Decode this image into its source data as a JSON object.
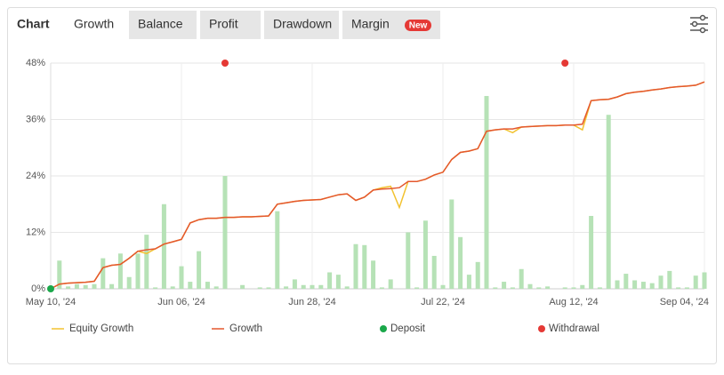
{
  "tabs": [
    "Chart",
    "Growth",
    "Balance",
    "Profit",
    "Drawdown",
    "Margin"
  ],
  "badge": "New",
  "active_tab": 1,
  "chart_data": {
    "type": "line",
    "categories": [
      "May 10, '24",
      null,
      null,
      null,
      null,
      null,
      null,
      null,
      null,
      null,
      null,
      null,
      null,
      null,
      null,
      "Jun 06, '24",
      null,
      null,
      null,
      null,
      null,
      null,
      null,
      null,
      null,
      null,
      null,
      null,
      null,
      null,
      "Jun 28, '24",
      null,
      null,
      null,
      null,
      null,
      null,
      null,
      null,
      null,
      null,
      null,
      null,
      null,
      null,
      "Jul 22, '24",
      null,
      null,
      null,
      null,
      null,
      null,
      null,
      null,
      null,
      null,
      null,
      null,
      null,
      null,
      "Aug 12, '24",
      null,
      null,
      null,
      null,
      null,
      null,
      null,
      null,
      null,
      null,
      null,
      null,
      null,
      null,
      "Sep 04, '24"
    ],
    "ylim": [
      0,
      48
    ],
    "yticks": [
      {
        "value": 0,
        "label": "0%"
      },
      {
        "value": 12,
        "label": "12%"
      },
      {
        "value": 24,
        "label": "24%"
      },
      {
        "value": 36,
        "label": "36%"
      },
      {
        "value": 48,
        "label": "48%"
      }
    ],
    "grid": true,
    "bars": {
      "color": "#b6e2b6",
      "values": [
        0,
        6,
        0.5,
        1,
        0.8,
        1,
        6.5,
        1,
        7.5,
        2.5,
        7.5,
        11.5,
        0.3,
        18,
        0.5,
        4.8,
        1.5,
        8,
        1.5,
        0.5,
        24,
        0,
        0.8,
        0,
        0.3,
        0.3,
        16.5,
        0.5,
        2,
        0.8,
        0.8,
        0.8,
        3.5,
        3,
        0.5,
        9.5,
        9.3,
        6,
        0.3,
        2,
        0,
        12,
        0.3,
        14.5,
        7,
        0.8,
        19,
        11,
        3,
        5.7,
        41,
        0.3,
        1.5,
        0.3,
        4.2,
        1,
        0.3,
        0.5,
        0,
        0.3,
        0.3,
        0.8,
        15.5,
        0.3,
        37,
        1.8,
        3.2,
        1.8,
        1.5,
        1.2,
        2.8,
        3.8,
        0.3,
        0.3,
        2.8,
        3.5
      ]
    },
    "series": [
      {
        "name": "Equity Growth",
        "type": "line",
        "color": "#f2c230",
        "values": [
          0,
          1,
          1.2,
          1.3,
          1.4,
          1.6,
          4.5,
          5,
          5.2,
          6.5,
          8,
          7.5,
          8.5,
          9.5,
          10,
          10.5,
          14,
          14.7,
          15,
          15,
          15.2,
          15.2,
          15.3,
          15.3,
          15.4,
          15.5,
          18,
          18.3,
          18.6,
          18.8,
          18.9,
          19,
          19.5,
          20,
          20.2,
          18.8,
          19.5,
          21,
          21.5,
          21.8,
          17.3,
          22.8,
          22.8,
          23.3,
          24.2,
          24.8,
          27.5,
          29,
          29.3,
          29.8,
          33.5,
          33.8,
          34,
          33.2,
          34.4,
          34.5,
          34.6,
          34.7,
          34.7,
          34.8,
          34.8,
          33.8,
          40,
          40.2,
          40.3,
          40.8,
          41.5,
          41.8,
          42,
          42.3,
          42.5,
          42.8,
          43,
          43.1,
          43.3,
          44
        ]
      },
      {
        "name": "Growth",
        "type": "line",
        "color": "#e4572e",
        "values": [
          0,
          1,
          1.2,
          1.3,
          1.4,
          1.6,
          4.5,
          5,
          5.2,
          6.5,
          8,
          8.3,
          8.5,
          9.5,
          10,
          10.5,
          14,
          14.7,
          15,
          15,
          15.2,
          15.2,
          15.3,
          15.3,
          15.4,
          15.5,
          18,
          18.3,
          18.6,
          18.8,
          18.9,
          19,
          19.5,
          20,
          20.2,
          18.8,
          19.5,
          21,
          21.2,
          21.3,
          21.5,
          22.8,
          22.8,
          23.3,
          24.2,
          24.8,
          27.5,
          29,
          29.3,
          29.8,
          33.5,
          33.8,
          34,
          34,
          34.4,
          34.5,
          34.6,
          34.7,
          34.7,
          34.8,
          34.8,
          35,
          40,
          40.2,
          40.3,
          40.8,
          41.5,
          41.8,
          42,
          42.3,
          42.5,
          42.8,
          43,
          43.1,
          43.3,
          44
        ]
      },
      {
        "name": "Deposit",
        "type": "point",
        "color": "#1aa84a",
        "values": [
          0,
          null,
          null,
          null,
          null,
          null,
          null,
          null,
          null,
          null,
          null,
          null,
          null,
          null,
          null,
          null,
          null,
          null,
          null,
          null,
          null,
          null,
          null,
          null,
          null,
          null,
          null,
          null,
          null,
          null,
          null,
          null,
          null,
          null,
          null,
          null,
          null,
          null,
          null,
          null,
          null,
          null,
          null,
          null,
          null,
          null,
          null,
          null,
          null,
          null,
          null,
          null,
          null,
          null,
          null,
          null,
          null,
          null,
          null,
          null,
          null,
          null,
          null,
          null,
          null,
          null,
          null,
          null,
          null,
          null,
          null,
          null,
          null,
          null,
          null,
          null
        ]
      },
      {
        "name": "Withdrawal",
        "type": "point",
        "color": "#e53935",
        "values": [
          null,
          null,
          null,
          null,
          null,
          null,
          null,
          null,
          null,
          null,
          null,
          null,
          null,
          null,
          null,
          null,
          null,
          null,
          null,
          null,
          48,
          null,
          null,
          null,
          null,
          null,
          null,
          null,
          null,
          null,
          null,
          null,
          null,
          null,
          null,
          null,
          null,
          null,
          null,
          null,
          null,
          null,
          null,
          null,
          null,
          null,
          null,
          null,
          null,
          null,
          null,
          null,
          null,
          null,
          null,
          null,
          null,
          null,
          null,
          48,
          null,
          null,
          null,
          null,
          null,
          null,
          null,
          null,
          null,
          null,
          null,
          null,
          null,
          null,
          null,
          null
        ]
      }
    ]
  }
}
